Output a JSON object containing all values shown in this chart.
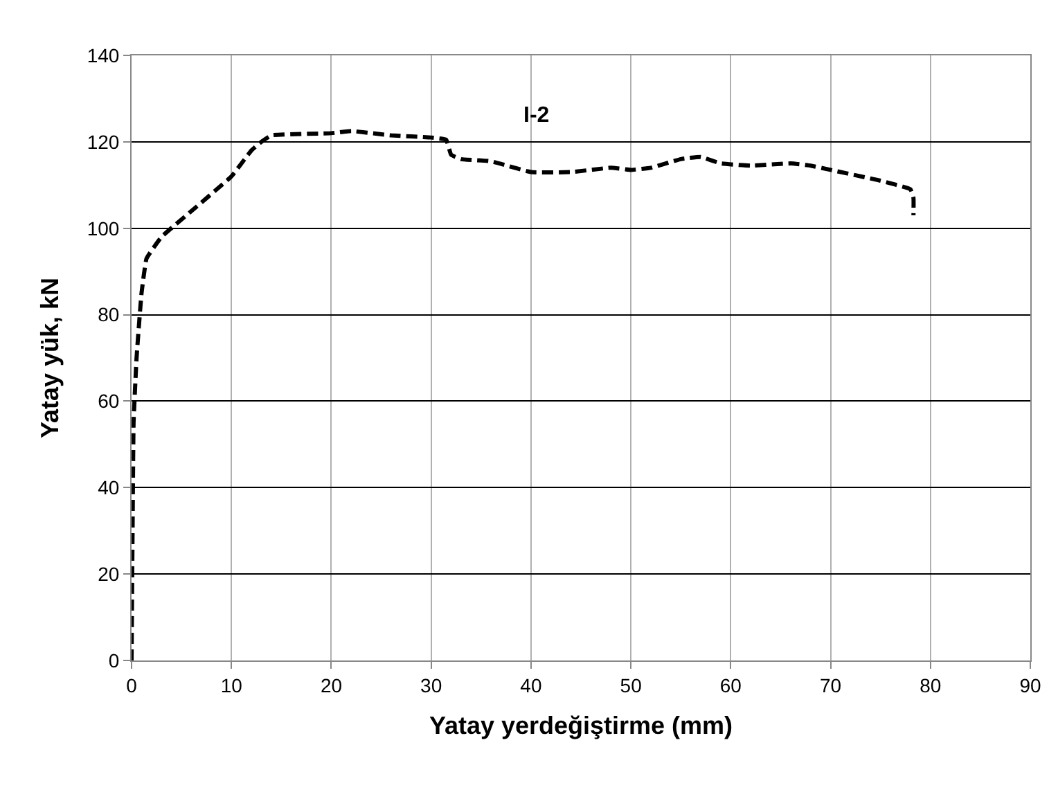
{
  "chart_data": {
    "type": "line",
    "xlabel": "Yatay yerdeğiştirme (mm)",
    "ylabel": "Yatay yük, kN",
    "annotations": [
      "I-2"
    ],
    "xlim": [
      0,
      90
    ],
    "xticks": [
      0,
      10,
      20,
      30,
      40,
      50,
      60,
      70,
      80,
      90
    ],
    "ylim": [
      0,
      140
    ],
    "yticks": [
      0,
      20,
      40,
      60,
      80,
      100,
      120,
      140
    ],
    "grid": true,
    "line_style": "dashed",
    "marker": "none",
    "series": [
      {
        "color": "#000000",
        "x": [
          0,
          0.1,
          0.2,
          0.5,
          1,
          1.5,
          3,
          6,
          10,
          12,
          13,
          14,
          20,
          22,
          26,
          30,
          31.5,
          32,
          33,
          36,
          40,
          44,
          48,
          50,
          52,
          55,
          57,
          59,
          62,
          66,
          68,
          70,
          75,
          78,
          78.3,
          78.3
        ],
        "values": [
          0,
          30,
          55,
          70,
          85,
          93,
          98,
          104,
          112,
          118,
          120,
          121.5,
          122,
          122.5,
          121.5,
          121,
          120.5,
          117,
          116,
          115.5,
          113,
          113,
          114,
          113.5,
          114,
          116,
          116.5,
          115,
          114.5,
          115,
          114.5,
          113.5,
          111,
          109,
          107,
          103
        ]
      }
    ]
  }
}
